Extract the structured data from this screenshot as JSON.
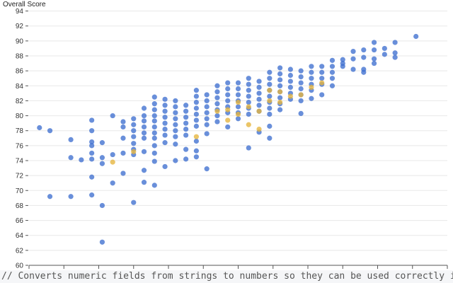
{
  "chart_data": {
    "type": "scatter",
    "title": "",
    "xlabel": "",
    "ylabel": "Overall Score",
    "ylim": [
      60,
      95
    ],
    "xlim": [
      0,
      12
    ],
    "yticks": [
      60,
      62,
      64,
      66,
      68,
      70,
      72,
      74,
      76,
      78,
      80,
      82,
      84,
      86,
      88,
      90,
      92,
      94
    ],
    "xtick_labels": [
      "",
      "",
      "",
      "",
      "",
      "",
      "",
      "",
      "",
      "",
      "",
      "",
      ""
    ],
    "grid": true,
    "legend": "none",
    "series": [
      {
        "name": "blue",
        "color": "#3f6fd0",
        "points": [
          [
            0.3,
            78.4
          ],
          [
            0.6,
            78.0
          ],
          [
            0.6,
            69.2
          ],
          [
            1.2,
            76.8
          ],
          [
            1.2,
            74.4
          ],
          [
            1.2,
            69.2
          ],
          [
            1.5,
            74.1
          ],
          [
            1.8,
            79.4
          ],
          [
            1.8,
            78.0
          ],
          [
            1.8,
            76.5
          ],
          [
            1.8,
            76.0
          ],
          [
            1.8,
            75.0
          ],
          [
            1.8,
            74.2
          ],
          [
            1.8,
            71.8
          ],
          [
            1.8,
            69.4
          ],
          [
            2.1,
            76.4
          ],
          [
            2.1,
            74.4
          ],
          [
            2.1,
            73.6
          ],
          [
            2.1,
            68.0
          ],
          [
            2.1,
            63.1
          ],
          [
            2.4,
            80.0
          ],
          [
            2.4,
            74.8
          ],
          [
            2.4,
            71.0
          ],
          [
            2.7,
            79.2
          ],
          [
            2.7,
            78.5
          ],
          [
            2.7,
            77.0
          ],
          [
            2.7,
            75.0
          ],
          [
            2.7,
            72.3
          ],
          [
            3.0,
            79.6
          ],
          [
            3.0,
            78.8
          ],
          [
            3.0,
            78.0
          ],
          [
            3.0,
            77.2
          ],
          [
            3.0,
            76.3
          ],
          [
            3.0,
            75.5
          ],
          [
            3.0,
            74.8
          ],
          [
            3.0,
            68.4
          ],
          [
            3.3,
            81.0
          ],
          [
            3.3,
            80.0
          ],
          [
            3.3,
            79.3
          ],
          [
            3.3,
            78.5
          ],
          [
            3.3,
            77.7
          ],
          [
            3.3,
            77.0
          ],
          [
            3.3,
            75.2
          ],
          [
            3.3,
            72.7
          ],
          [
            3.3,
            71.1
          ],
          [
            3.6,
            82.5
          ],
          [
            3.6,
            81.6
          ],
          [
            3.6,
            80.8
          ],
          [
            3.6,
            80.0
          ],
          [
            3.6,
            79.3
          ],
          [
            3.6,
            78.5
          ],
          [
            3.6,
            77.7
          ],
          [
            3.6,
            77.0
          ],
          [
            3.6,
            76.0
          ],
          [
            3.6,
            75.0
          ],
          [
            3.6,
            73.9
          ],
          [
            3.6,
            70.7
          ],
          [
            3.9,
            82.2
          ],
          [
            3.9,
            81.4
          ],
          [
            3.9,
            80.6
          ],
          [
            3.9,
            79.8
          ],
          [
            3.9,
            79.0
          ],
          [
            3.9,
            78.2
          ],
          [
            3.9,
            77.4
          ],
          [
            3.9,
            76.4
          ],
          [
            3.9,
            73.2
          ],
          [
            4.2,
            82.0
          ],
          [
            4.2,
            81.2
          ],
          [
            4.2,
            80.4
          ],
          [
            4.2,
            79.6
          ],
          [
            4.2,
            78.8
          ],
          [
            4.2,
            78.0
          ],
          [
            4.2,
            77.2
          ],
          [
            4.2,
            76.2
          ],
          [
            4.2,
            74.0
          ],
          [
            4.5,
            81.4
          ],
          [
            4.5,
            80.6
          ],
          [
            4.5,
            79.8
          ],
          [
            4.5,
            79.0
          ],
          [
            4.5,
            78.2
          ],
          [
            4.5,
            77.4
          ],
          [
            4.5,
            75.5
          ],
          [
            4.5,
            74.2
          ],
          [
            4.8,
            83.4
          ],
          [
            4.8,
            82.6
          ],
          [
            4.8,
            81.8
          ],
          [
            4.8,
            81.0
          ],
          [
            4.8,
            80.2
          ],
          [
            4.8,
            79.4
          ],
          [
            4.8,
            78.6
          ],
          [
            4.8,
            76.6
          ],
          [
            4.8,
            75.3
          ],
          [
            4.8,
            74.5
          ],
          [
            5.1,
            82.8
          ],
          [
            5.1,
            82.0
          ],
          [
            5.1,
            81.2
          ],
          [
            5.1,
            80.4
          ],
          [
            5.1,
            79.6
          ],
          [
            5.1,
            78.8
          ],
          [
            5.1,
            77.6
          ],
          [
            5.1,
            72.9
          ],
          [
            5.4,
            84.0
          ],
          [
            5.4,
            83.2
          ],
          [
            5.4,
            82.4
          ],
          [
            5.4,
            81.6
          ],
          [
            5.4,
            80.8
          ],
          [
            5.4,
            80.0
          ],
          [
            5.4,
            79.2
          ],
          [
            5.7,
            84.4
          ],
          [
            5.7,
            83.6
          ],
          [
            5.7,
            82.8
          ],
          [
            5.7,
            82.0
          ],
          [
            5.7,
            81.2
          ],
          [
            5.7,
            80.4
          ],
          [
            5.7,
            78.5
          ],
          [
            6.0,
            84.4
          ],
          [
            6.0,
            83.6
          ],
          [
            6.0,
            82.8
          ],
          [
            6.0,
            82.0
          ],
          [
            6.0,
            81.2
          ],
          [
            6.0,
            80.4
          ],
          [
            6.0,
            79.6
          ],
          [
            6.3,
            85.0
          ],
          [
            6.3,
            84.2
          ],
          [
            6.3,
            83.4
          ],
          [
            6.3,
            82.6
          ],
          [
            6.3,
            81.8
          ],
          [
            6.3,
            81.0
          ],
          [
            6.3,
            80.2
          ],
          [
            6.3,
            75.7
          ],
          [
            6.6,
            84.6
          ],
          [
            6.6,
            83.8
          ],
          [
            6.6,
            83.0
          ],
          [
            6.6,
            82.2
          ],
          [
            6.6,
            81.4
          ],
          [
            6.6,
            80.6
          ],
          [
            6.6,
            77.8
          ],
          [
            6.9,
            85.8
          ],
          [
            6.9,
            85.0
          ],
          [
            6.9,
            84.2
          ],
          [
            6.9,
            83.4
          ],
          [
            6.9,
            82.6
          ],
          [
            6.9,
            81.8
          ],
          [
            6.9,
            81.0
          ],
          [
            6.9,
            80.2
          ],
          [
            6.9,
            78.6
          ],
          [
            6.9,
            77.0
          ],
          [
            7.2,
            86.4
          ],
          [
            7.2,
            85.6
          ],
          [
            7.2,
            84.8
          ],
          [
            7.2,
            84.0
          ],
          [
            7.2,
            83.2
          ],
          [
            7.2,
            82.4
          ],
          [
            7.2,
            81.6
          ],
          [
            7.2,
            80.8
          ],
          [
            7.5,
            86.2
          ],
          [
            7.5,
            85.4
          ],
          [
            7.5,
            84.6
          ],
          [
            7.5,
            83.8
          ],
          [
            7.5,
            83.0
          ],
          [
            7.5,
            82.2
          ],
          [
            7.8,
            86.0
          ],
          [
            7.8,
            85.2
          ],
          [
            7.8,
            84.4
          ],
          [
            7.8,
            83.6
          ],
          [
            7.8,
            82.8
          ],
          [
            7.8,
            82.0
          ],
          [
            7.8,
            80.3
          ],
          [
            8.1,
            86.6
          ],
          [
            8.1,
            85.8
          ],
          [
            8.1,
            85.0
          ],
          [
            8.1,
            84.2
          ],
          [
            8.1,
            83.4
          ],
          [
            8.1,
            82.3
          ],
          [
            8.4,
            86.6
          ],
          [
            8.4,
            85.8
          ],
          [
            8.4,
            85.0
          ],
          [
            8.4,
            84.2
          ],
          [
            8.4,
            82.8
          ],
          [
            8.7,
            87.4
          ],
          [
            8.7,
            86.6
          ],
          [
            8.7,
            85.8
          ],
          [
            8.7,
            85.0
          ],
          [
            8.7,
            84.0
          ],
          [
            9.0,
            87.5
          ],
          [
            9.0,
            87.0
          ],
          [
            9.0,
            86.6
          ],
          [
            9.3,
            88.6
          ],
          [
            9.3,
            87.6
          ],
          [
            9.3,
            86.2
          ],
          [
            9.6,
            88.8
          ],
          [
            9.6,
            87.8
          ],
          [
            9.6,
            86.2
          ],
          [
            9.6,
            85.8
          ],
          [
            9.9,
            89.8
          ],
          [
            9.9,
            88.8
          ],
          [
            9.9,
            87.6
          ],
          [
            9.9,
            87.0
          ],
          [
            10.2,
            89.0
          ],
          [
            10.2,
            88.2
          ],
          [
            10.5,
            89.8
          ],
          [
            10.5,
            88.4
          ],
          [
            10.5,
            87.8
          ],
          [
            11.1,
            90.6
          ]
        ]
      },
      {
        "name": "orange",
        "color": "#e6b53c",
        "points": [
          [
            2.4,
            73.8
          ],
          [
            3.0,
            75.2
          ],
          [
            4.8,
            77.2
          ],
          [
            5.4,
            80.6
          ],
          [
            5.7,
            79.4
          ],
          [
            5.7,
            80.8
          ],
          [
            6.0,
            81.8
          ],
          [
            6.0,
            80.2
          ],
          [
            6.3,
            78.8
          ],
          [
            6.3,
            81.2
          ],
          [
            6.6,
            78.2
          ],
          [
            6.6,
            80.6
          ],
          [
            6.9,
            83.4
          ],
          [
            6.9,
            82.0
          ],
          [
            7.2,
            83.2
          ],
          [
            7.2,
            81.8
          ],
          [
            7.5,
            82.6
          ],
          [
            7.8,
            82.8
          ],
          [
            8.1,
            83.8
          ],
          [
            8.4,
            84.4
          ]
        ]
      }
    ]
  },
  "code_snippet": "// Converts numeric fields from strings to numbers so they can be used correctly in"
}
